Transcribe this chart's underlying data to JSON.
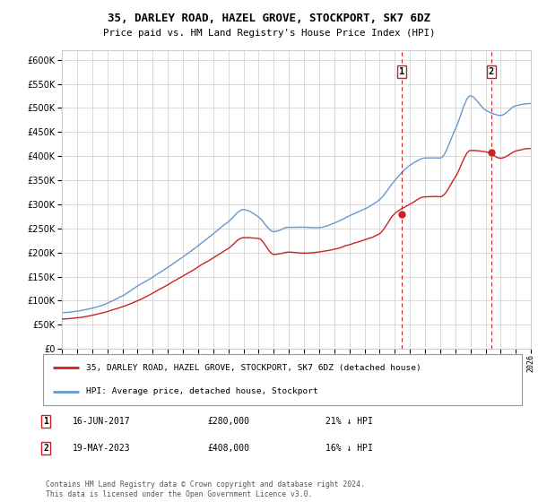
{
  "title": "35, DARLEY ROAD, HAZEL GROVE, STOCKPORT, SK7 6DZ",
  "subtitle": "Price paid vs. HM Land Registry's House Price Index (HPI)",
  "ylim": [
    0,
    620000
  ],
  "yticks": [
    0,
    50000,
    100000,
    150000,
    200000,
    250000,
    300000,
    350000,
    400000,
    450000,
    500000,
    550000,
    600000
  ],
  "background_color": "#ffffff",
  "grid_color": "#cccccc",
  "hpi_color": "#6699cc",
  "price_color": "#cc2222",
  "vline_color": "#cc2222",
  "marker1_x": 2017.46,
  "marker2_x": 2023.38,
  "marker1_price": 280000,
  "marker2_price": 408000,
  "marker1_label": "1",
  "marker2_label": "2",
  "legend_label_price": "35, DARLEY ROAD, HAZEL GROVE, STOCKPORT, SK7 6DZ (detached house)",
  "legend_label_hpi": "HPI: Average price, detached house, Stockport",
  "note1_label": "1",
  "note1_date": "16-JUN-2017",
  "note1_price": "£280,000",
  "note1_detail": "21% ↓ HPI",
  "note2_label": "2",
  "note2_date": "19-MAY-2023",
  "note2_price": "£408,000",
  "note2_detail": "16% ↓ HPI",
  "footer": "Contains HM Land Registry data © Crown copyright and database right 2024.\nThis data is licensed under the Open Government Licence v3.0.",
  "xmin": 1995,
  "xmax": 2026,
  "hpi_keypoints_x": [
    1995,
    1997,
    1999,
    2000,
    2002,
    2004,
    2006,
    2007,
    2008,
    2009,
    2010,
    2011,
    2012,
    2013,
    2014,
    2015,
    2016,
    2017,
    2018,
    2019,
    2020,
    2021,
    2022,
    2023,
    2024,
    2025,
    2026
  ],
  "hpi_keypoints_y": [
    75000,
    85000,
    110000,
    130000,
    170000,
    215000,
    265000,
    290000,
    275000,
    245000,
    255000,
    255000,
    255000,
    265000,
    280000,
    295000,
    315000,
    355000,
    385000,
    400000,
    400000,
    460000,
    530000,
    500000,
    490000,
    510000,
    515000
  ],
  "price_keypoints_x": [
    1995,
    1997,
    1999,
    2000,
    2002,
    2004,
    2006,
    2007,
    2008,
    2009,
    2010,
    2011,
    2012,
    2013,
    2014,
    2015,
    2016,
    2017,
    2018,
    2019,
    2020,
    2021,
    2022,
    2023,
    2024,
    2025,
    2026
  ],
  "price_keypoints_y": [
    62000,
    70000,
    88000,
    100000,
    132000,
    168000,
    208000,
    230000,
    228000,
    195000,
    200000,
    198000,
    200000,
    205000,
    215000,
    225000,
    238000,
    280000,
    300000,
    315000,
    315000,
    355000,
    410000,
    408000,
    395000,
    410000,
    415000
  ]
}
